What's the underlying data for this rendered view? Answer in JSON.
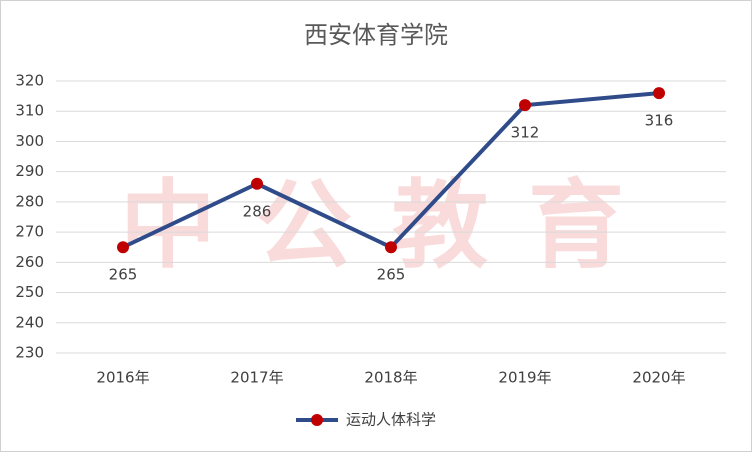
{
  "chart_data": {
    "type": "line",
    "title": "西安体育学院",
    "watermark": "中公教育",
    "categories": [
      "2016年",
      "2017年",
      "2018年",
      "2019年",
      "2020年"
    ],
    "series": [
      {
        "name": "运动人体科学",
        "color": "#2f4b8a",
        "marker_color": "#c00000",
        "values": [
          265,
          286,
          265,
          312,
          316
        ]
      }
    ],
    "ylim": [
      230,
      320
    ],
    "yticks": [
      230,
      240,
      250,
      260,
      270,
      280,
      290,
      300,
      310,
      320
    ],
    "grid": true,
    "legend": "bottom"
  }
}
